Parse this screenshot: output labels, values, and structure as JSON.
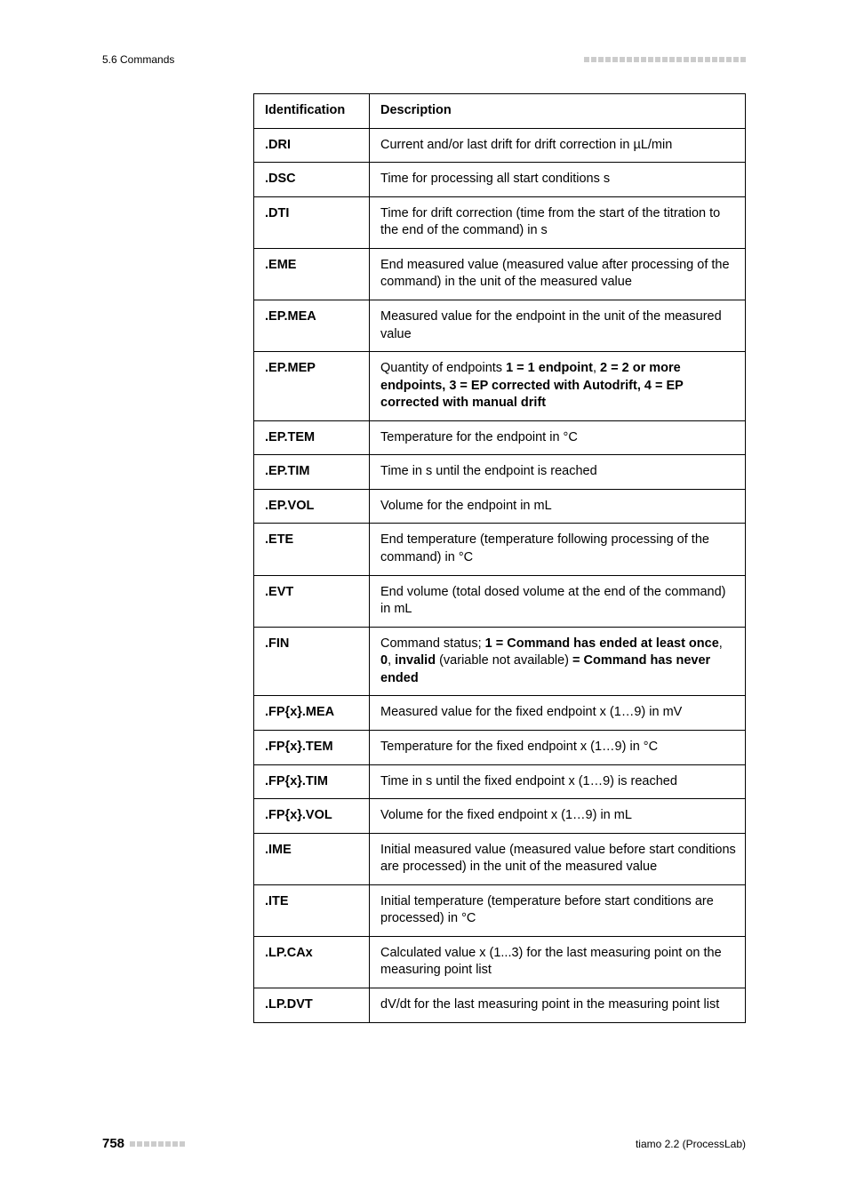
{
  "header": {
    "section": "5.6 Commands"
  },
  "table": {
    "columns": [
      "Identification",
      "Description"
    ],
    "rows": [
      {
        "id": ".DRI",
        "desc": "Current and/or last drift for drift correction in µL/min"
      },
      {
        "id": ".DSC",
        "desc": "Time for processing all start conditions s"
      },
      {
        "id": ".DTI",
        "desc": "Time for drift correction (time from the start of the titration to the end of the command) in s"
      },
      {
        "id": ".EME",
        "desc": "End measured value (measured value after processing of the command) in the unit of the measured value"
      },
      {
        "id": ".EP.MEA",
        "desc": "Measured value for the endpoint in the unit of the measured value"
      },
      {
        "id": ".EP.MEP",
        "desc_parts": [
          {
            "t": "Quantity of endpoints ",
            "b": false
          },
          {
            "t": "1 = 1 endpoint",
            "b": true
          },
          {
            "t": ", ",
            "b": false
          },
          {
            "t": "2 = 2 or more endpoints, 3 = EP corrected with Autodrift, 4 = EP corrected with manual drift",
            "b": true
          }
        ]
      },
      {
        "id": ".EP.TEM",
        "desc": "Temperature for the endpoint in °C"
      },
      {
        "id": ".EP.TIM",
        "desc": "Time in s until the endpoint is reached"
      },
      {
        "id": ".EP.VOL",
        "desc": "Volume for the endpoint in mL"
      },
      {
        "id": ".ETE",
        "desc": "End temperature (temperature following processing of the command) in °C"
      },
      {
        "id": ".EVT",
        "desc": "End volume (total dosed volume at the end of the command) in mL"
      },
      {
        "id": ".FIN",
        "desc_parts": [
          {
            "t": "Command status; ",
            "b": false
          },
          {
            "t": "1 = Command has ended at least once",
            "b": true
          },
          {
            "t": ", ",
            "b": false
          },
          {
            "t": "0",
            "b": true
          },
          {
            "t": ", ",
            "b": false
          },
          {
            "t": "invalid",
            "b": true
          },
          {
            "t": " (variable not available) ",
            "b": false
          },
          {
            "t": "= Command has never ended",
            "b": true
          }
        ]
      },
      {
        "id": ".FP{x}.MEA",
        "desc": "Measured value for the fixed endpoint x (1…9) in mV"
      },
      {
        "id": ".FP{x}.TEM",
        "desc": "Temperature for the fixed endpoint x (1…9) in °C"
      },
      {
        "id": ".FP{x}.TIM",
        "desc": "Time in s until the fixed endpoint x (1…9) is reached"
      },
      {
        "id": ".FP{x}.VOL",
        "desc": "Volume for the fixed endpoint x (1…9) in mL"
      },
      {
        "id": ".IME",
        "desc": "Initial measured value (measured value before start conditions are processed) in the unit of the measured value"
      },
      {
        "id": ".ITE",
        "desc": "Initial temperature (temperature before start conditions are processed) in °C"
      },
      {
        "id": ".LP.CAx",
        "desc": "Calculated value x (1...3) for the last measuring point on the measuring point list"
      },
      {
        "id": ".LP.DVT",
        "desc": "dV/dt for the last measuring point in the measuring point list"
      }
    ]
  },
  "footer": {
    "page": "758",
    "product": "tiamo 2.2 (ProcessLab)"
  },
  "style": {
    "decor_squares_header": 23,
    "decor_squares_footer": 8,
    "decor_color": "#cccccc"
  }
}
